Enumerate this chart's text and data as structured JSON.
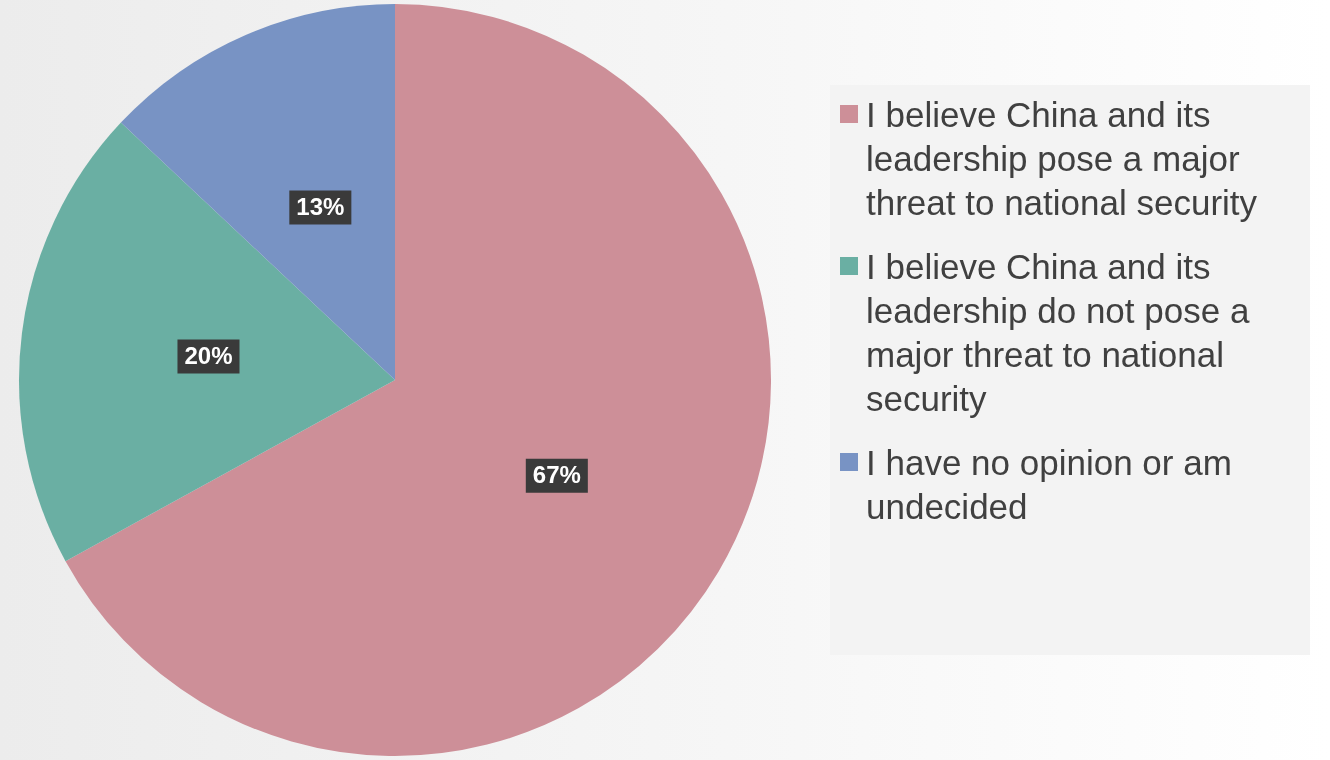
{
  "chart_data": {
    "type": "pie",
    "categories": [
      "I believe China and its leadership pose a major threat to national security",
      "I believe China and its leadership do not pose a major threat to national security",
      "I have no opinion or am undecided"
    ],
    "values": [
      67,
      20,
      13
    ],
    "colors": [
      "#cd8f98",
      "#6aafa3",
      "#7893c4"
    ],
    "value_labels": [
      "67%",
      "20%",
      "13%"
    ],
    "legend": "right"
  }
}
